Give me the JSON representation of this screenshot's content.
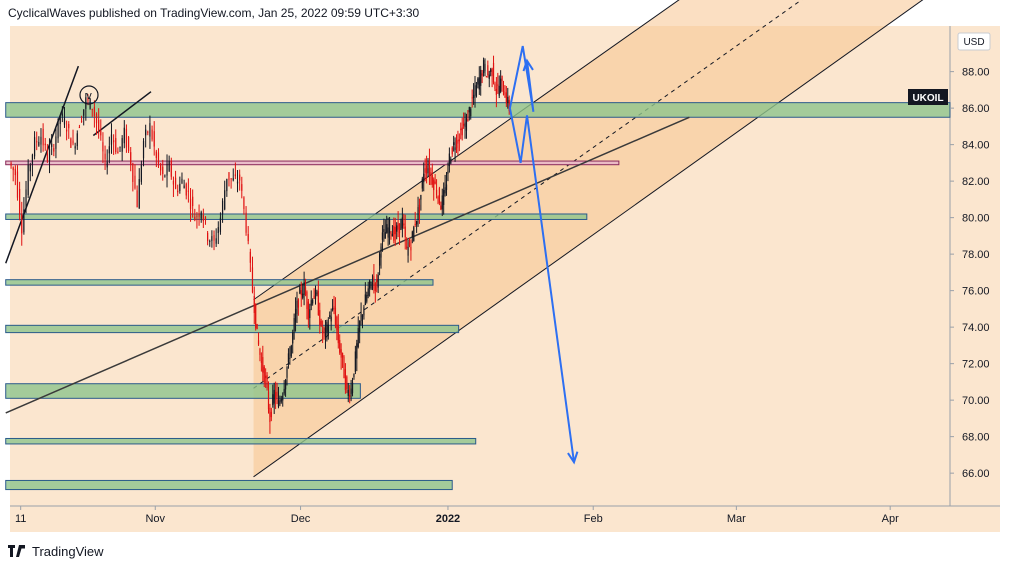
{
  "header": {
    "publish_line": "CyclicalWaves published on TradingView.com, Jan 25, 2022 09:59 UTC+3:30"
  },
  "footer": {
    "brand": "TradingView",
    "logo_icon": "tradingview-logo-icon"
  },
  "chart_data": {
    "type": "candlestick",
    "symbol_label": "UKOIL",
    "currency_label": "USD",
    "wave_label": "v",
    "x_ticks": [
      "11",
      "Nov",
      "Dec",
      "2022",
      "Feb",
      "Mar",
      "Apr"
    ],
    "y_ticks": [
      "66.00",
      "68.00",
      "70.00",
      "72.00",
      "74.00",
      "76.00",
      "78.00",
      "80.00",
      "82.00",
      "84.00",
      "86.00",
      "88.00"
    ],
    "ylim": [
      64.2,
      90.5
    ],
    "last_price": 86.0,
    "price_path": [
      [
        0,
        83.0
      ],
      [
        3,
        82.4
      ],
      [
        6,
        79.5
      ],
      [
        9,
        82.5
      ],
      [
        12,
        84.1
      ],
      [
        15,
        84.5
      ],
      [
        18,
        83.3
      ],
      [
        21,
        84.0
      ],
      [
        24,
        85.6
      ],
      [
        27,
        85.0
      ],
      [
        30,
        83.8
      ],
      [
        33,
        85.2
      ],
      [
        36,
        86.4
      ],
      [
        39,
        86.1
      ],
      [
        42,
        84.8
      ],
      [
        45,
        82.8
      ],
      [
        48,
        84.6
      ],
      [
        51,
        83.5
      ],
      [
        54,
        84.6
      ],
      [
        57,
        83.1
      ],
      [
        60,
        80.8
      ],
      [
        63,
        84.2
      ],
      [
        66,
        85.0
      ],
      [
        69,
        83.2
      ],
      [
        72,
        82.2
      ],
      [
        75,
        82.8
      ],
      [
        78,
        81.5
      ],
      [
        81,
        82.0
      ],
      [
        84,
        81.3
      ],
      [
        87,
        80.0
      ],
      [
        90,
        80.5
      ],
      [
        93,
        79.0
      ],
      [
        96,
        78.6
      ],
      [
        99,
        80.0
      ],
      [
        102,
        82.3
      ],
      [
        105,
        82.0
      ],
      [
        108,
        82.1
      ],
      [
        111,
        79.5
      ],
      [
        114,
        76.0
      ],
      [
        116,
        73.5
      ],
      [
        118,
        72.0
      ],
      [
        120,
        71.0
      ],
      [
        122,
        69.0
      ],
      [
        124,
        70.4
      ],
      [
        126,
        69.8
      ],
      [
        128,
        70.5
      ],
      [
        130,
        71.8
      ],
      [
        132,
        73.0
      ],
      [
        134,
        74.8
      ],
      [
        136,
        75.8
      ],
      [
        138,
        76.2
      ],
      [
        140,
        74.8
      ],
      [
        142,
        75.8
      ],
      [
        144,
        75.6
      ],
      [
        146,
        73.8
      ],
      [
        148,
        73.6
      ],
      [
        150,
        74.6
      ],
      [
        152,
        75.0
      ],
      [
        154,
        73.2
      ],
      [
        156,
        72.0
      ],
      [
        158,
        70.4
      ],
      [
        160,
        70.6
      ],
      [
        162,
        72.3
      ],
      [
        164,
        74.2
      ],
      [
        166,
        75.2
      ],
      [
        168,
        76.0
      ],
      [
        170,
        76.6
      ],
      [
        172,
        76.2
      ],
      [
        174,
        78.8
      ],
      [
        176,
        79.2
      ],
      [
        178,
        79.5
      ],
      [
        180,
        79.1
      ],
      [
        182,
        79.4
      ],
      [
        184,
        79.8
      ],
      [
        186,
        78.2
      ],
      [
        188,
        78.6
      ],
      [
        190,
        79.8
      ],
      [
        192,
        80.6
      ],
      [
        194,
        82.6
      ],
      [
        196,
        82.8
      ],
      [
        198,
        82.1
      ],
      [
        200,
        81.5
      ],
      [
        202,
        80.7
      ],
      [
        204,
        81.4
      ],
      [
        206,
        83.3
      ],
      [
        208,
        84.0
      ],
      [
        210,
        84.3
      ],
      [
        212,
        84.9
      ],
      [
        214,
        85.2
      ],
      [
        216,
        86.2
      ],
      [
        218,
        86.9
      ],
      [
        220,
        87.6
      ],
      [
        222,
        88.3
      ],
      [
        224,
        87.8
      ],
      [
        226,
        88.1
      ],
      [
        228,
        86.9
      ],
      [
        230,
        87.4
      ],
      [
        232,
        86.8
      ],
      [
        234,
        86.0
      ]
    ],
    "x_range": [
      0,
      440
    ],
    "support_zones": [
      {
        "lo": 85.5,
        "hi": 86.3,
        "x0": -2,
        "x1": 440
      },
      {
        "lo": 82.9,
        "hi": 83.1,
        "x0": -2,
        "x1": 285,
        "style": "pink"
      },
      {
        "lo": 79.9,
        "hi": 80.2,
        "x0": -2,
        "x1": 270
      },
      {
        "lo": 76.3,
        "hi": 76.6,
        "x0": -2,
        "x1": 198
      },
      {
        "lo": 73.7,
        "hi": 74.1,
        "x0": -2,
        "x1": 210
      },
      {
        "lo": 70.1,
        "hi": 70.9,
        "x0": -2,
        "x1": 164
      },
      {
        "lo": 67.6,
        "hi": 67.9,
        "x0": -2,
        "x1": 218
      },
      {
        "lo": 65.1,
        "hi": 65.6,
        "x0": -2,
        "x1": 207
      }
    ],
    "channel": {
      "x0": 114,
      "x1": 440,
      "lower_start": 65.8,
      "lower_end": 93.0,
      "upper_start": 75.5,
      "upper_end": 102.4
    },
    "projection": [
      [
        234,
        86.0
      ],
      [
        240,
        89.4
      ],
      [
        245,
        85.8
      ],
      [
        242,
        88.6
      ]
    ],
    "projection_down": [
      [
        234,
        86.0
      ],
      [
        239,
        83.0
      ],
      [
        242,
        85.6
      ],
      [
        264,
        66.6
      ]
    ],
    "colors": {
      "bull": "#131722",
      "bear": "#e01010",
      "background": "#fbe6cf",
      "zone_fill": "#8fc48c",
      "zone_stroke": "#2a5a8a",
      "channel_fill": "#f7c58f",
      "arrow": "#2d6ff2",
      "axis_bg": "#ffffff"
    }
  }
}
